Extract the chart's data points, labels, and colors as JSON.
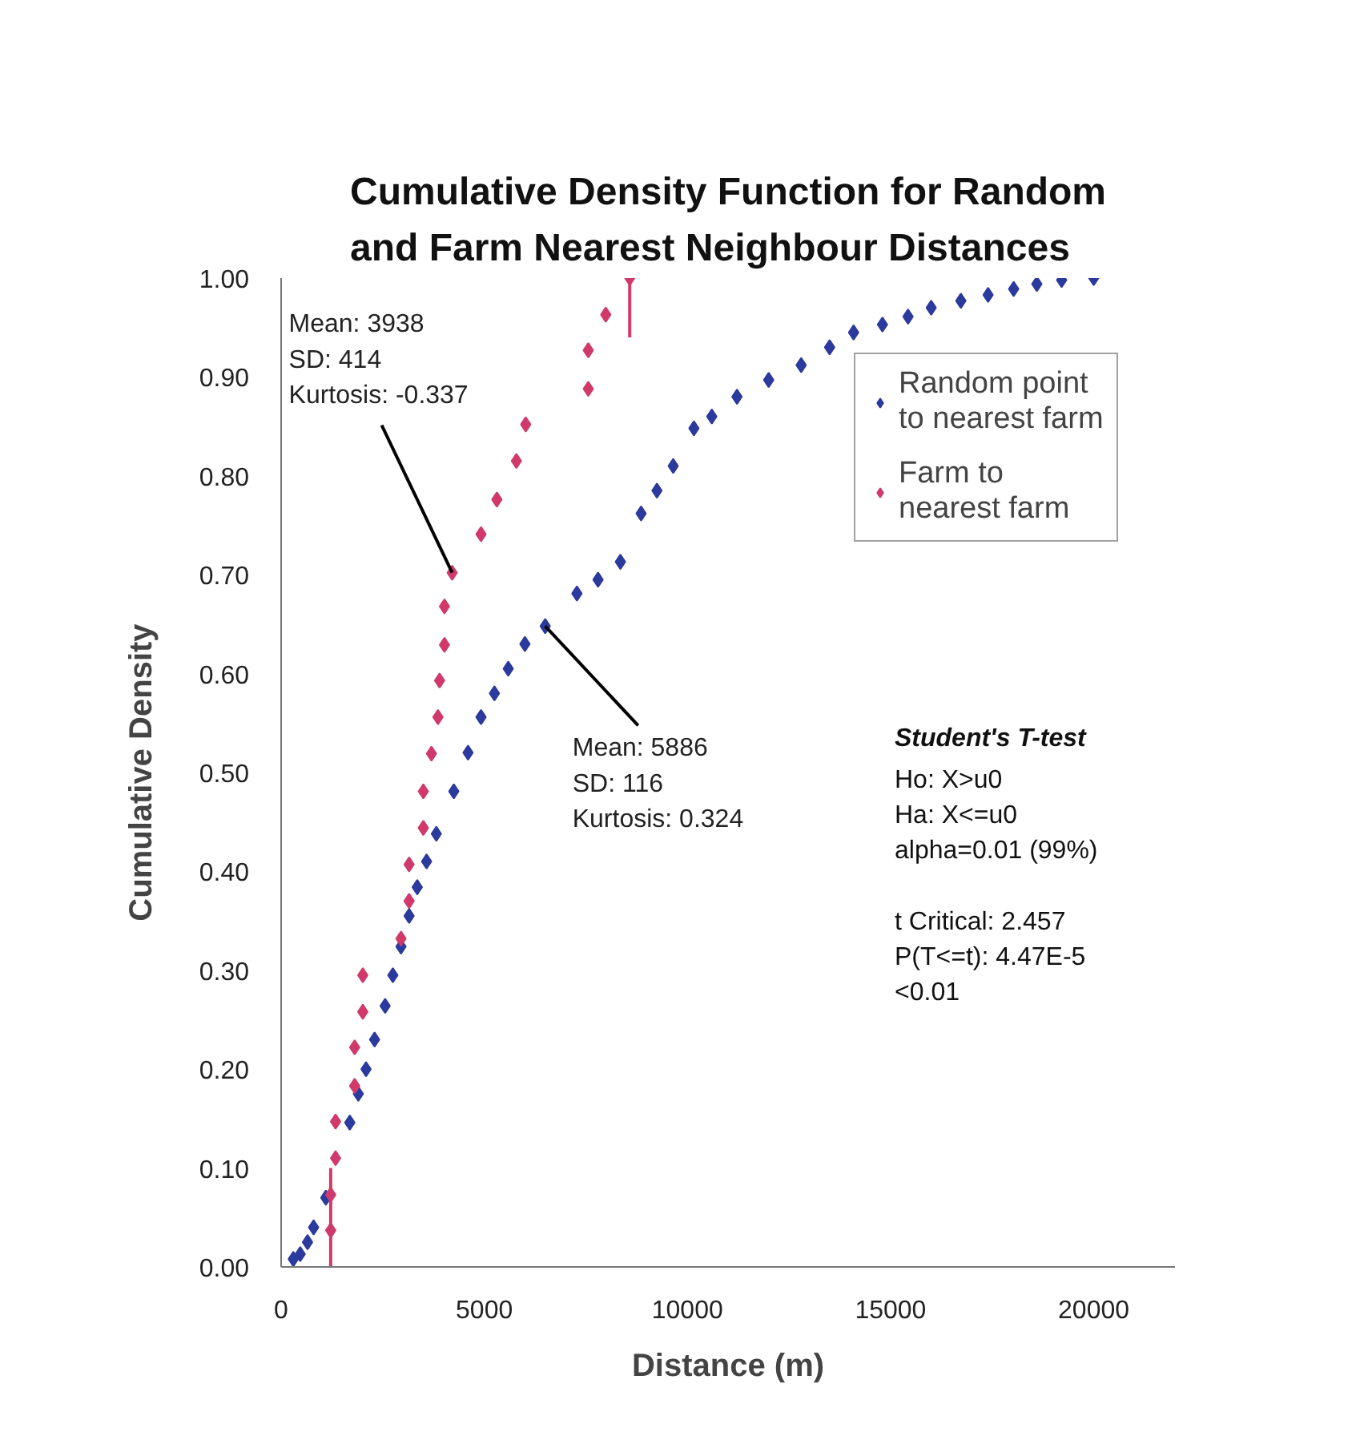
{
  "chart_data": {
    "type": "scatter",
    "title": "Cumulative Density Function for Random\nand Farm Nearest Neighbour Distances",
    "xlabel": "Distance (m)",
    "ylabel": "Cumulative Density",
    "xlim": [
      0,
      22000
    ],
    "xticks": [
      0,
      5000,
      10000,
      15000,
      20000
    ],
    "ylim": [
      0,
      1
    ],
    "yticks": [
      {
        "value": 0,
        "label": "0.00"
      },
      {
        "value": 0.1,
        "label": "0.10"
      },
      {
        "value": 0.2,
        "label": "0.20"
      },
      {
        "value": 0.3,
        "label": "0.30"
      },
      {
        "value": 0.4,
        "label": "0.40"
      },
      {
        "value": 0.5,
        "label": "0.50"
      },
      {
        "value": 0.6,
        "label": "0.60"
      },
      {
        "value": 0.7,
        "label": "0.70"
      },
      {
        "value": 0.8,
        "label": "0.80"
      },
      {
        "value": 0.9,
        "label": "0.90"
      },
      {
        "value": 1,
        "label": "1.00"
      }
    ],
    "grid": false,
    "legend": "top right",
    "marker": "diamond",
    "series": [
      {
        "name": "Random point\nto nearest farm",
        "color": "#2b3a9c",
        "x": [
          300,
          470,
          650,
          800,
          1100,
          1690,
          1900,
          2090,
          2300,
          2560,
          2750,
          2950,
          3150,
          3350,
          3580,
          3820,
          4250,
          4600,
          4920,
          5250,
          5590,
          6000,
          6500,
          7280,
          7800,
          8350,
          8860,
          9250,
          9650,
          10160,
          10600,
          11220,
          12000,
          12800,
          13500,
          14090,
          14800,
          15430,
          16000,
          16730,
          17400,
          18030,
          18600,
          19210,
          20000
        ],
        "values": [
          0.008,
          0.013,
          0.025,
          0.04,
          0.07,
          0.146,
          0.175,
          0.2,
          0.23,
          0.264,
          0.295,
          0.324,
          0.355,
          0.384,
          0.41,
          0.438,
          0.481,
          0.52,
          0.556,
          0.58,
          0.605,
          0.63,
          0.648,
          0.681,
          0.695,
          0.713,
          0.762,
          0.785,
          0.81,
          0.848,
          0.86,
          0.88,
          0.897,
          0.912,
          0.93,
          0.945,
          0.953,
          0.961,
          0.97,
          0.977,
          0.983,
          0.989,
          0.994,
          0.998,
          1.0
        ]
      },
      {
        "name": "Farm to\nnearest farm",
        "color": "#d03a6a",
        "x": [
          1220,
          1220,
          1340,
          1340,
          1810,
          1810,
          2010,
          2010,
          2950,
          3150,
          3150,
          3500,
          3500,
          3700,
          3860,
          3900,
          4020,
          4020,
          4210,
          4920,
          5310,
          5790,
          6020,
          7560,
          7560,
          7990,
          8580
        ],
        "values": [
          0.037,
          0.073,
          0.11,
          0.147,
          0.183,
          0.222,
          0.258,
          0.295,
          0.332,
          0.37,
          0.407,
          0.444,
          0.481,
          0.519,
          0.556,
          0.593,
          0.629,
          0.668,
          0.702,
          0.741,
          0.776,
          0.815,
          0.852,
          0.888,
          0.927,
          0.963,
          1.0
        ],
        "errors": [
          [
            0,
            0.1
          ],
          null,
          null,
          null,
          null,
          null,
          null,
          null,
          null,
          null,
          null,
          null,
          null,
          null,
          null,
          null,
          null,
          null,
          null,
          null,
          null,
          null,
          null,
          null,
          null,
          null,
          [
            0.94,
            1.0
          ]
        ]
      }
    ],
    "annotations": [
      {
        "text": "Mean: 3938\nSD: 414\nKurtosis: -0.337",
        "x": 4210,
        "y": 0.702
      },
      {
        "text": "Mean: 5886\nSD: 116\nKurtosis: 0.324",
        "x": 6500,
        "y": 0.648
      },
      "Student's T-test",
      "Ho: X>u0\nHa: X<=u0\nalpha=0.01 (99%)\n\nt Critical: 2.457\nP(T<=t): 4.47E-5\n<0.01"
    ]
  }
}
